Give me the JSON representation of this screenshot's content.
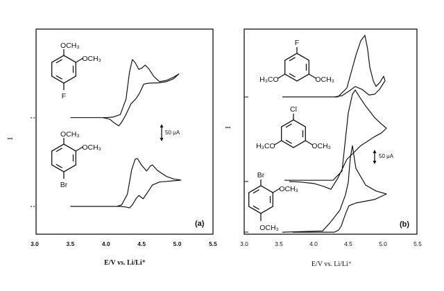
{
  "chart_data": [
    {
      "type": "line",
      "panel_label": "(a)",
      "xlabel": "E/V vs. Li/Li⁺",
      "ylabel": "I",
      "xlim": [
        3.0,
        5.5
      ],
      "xtick_labels": [
        "3.0",
        "3.5",
        "4.0",
        "4.5",
        "5.0",
        "5.5"
      ],
      "ylim_uA": [
        0,
        672
      ],
      "scale_bar": "50 μA",
      "grid": false,
      "structures": [
        {
          "top": "OCH₃",
          "upper_right": "OCH₃",
          "bottom": "F"
        },
        {
          "top": "OCH₃",
          "upper_right": "OCH₃",
          "bottom": "Br"
        }
      ],
      "series": [
        {
          "baseline_uA": 382,
          "points": [
            [
              3.5,
              0
            ],
            [
              4.0,
              0
            ],
            [
              4.1,
              2
            ],
            [
              4.2,
              10
            ],
            [
              4.28,
              60
            ],
            [
              4.33,
              150
            ],
            [
              4.37,
              190
            ],
            [
              4.41,
              180
            ],
            [
              4.46,
              158
            ],
            [
              4.5,
              162
            ],
            [
              4.55,
              172
            ],
            [
              4.6,
              160
            ],
            [
              4.67,
              135
            ],
            [
              4.75,
              118
            ],
            [
              4.85,
              122
            ],
            [
              4.95,
              133
            ],
            [
              5.02,
              143
            ],
            [
              4.95,
              128
            ],
            [
              4.85,
              118
            ],
            [
              4.75,
              114
            ],
            [
              4.6,
              113
            ],
            [
              4.53,
              110
            ],
            [
              4.47,
              80
            ],
            [
              4.42,
              62
            ],
            [
              4.35,
              45
            ],
            [
              4.28,
              10
            ],
            [
              4.22,
              -15
            ],
            [
              4.18,
              -27
            ],
            [
              4.12,
              -18
            ],
            [
              4.05,
              -5
            ],
            [
              3.95,
              0
            ],
            [
              3.5,
              0
            ]
          ]
        },
        {
          "baseline_uA": 91,
          "points": [
            [
              3.5,
              0
            ],
            [
              4.15,
              0
            ],
            [
              4.22,
              5
            ],
            [
              4.3,
              40
            ],
            [
              4.36,
              120
            ],
            [
              4.41,
              155
            ],
            [
              4.44,
              157
            ],
            [
              4.5,
              135
            ],
            [
              4.57,
              116
            ],
            [
              4.62,
              132
            ],
            [
              4.65,
              136
            ],
            [
              4.72,
              118
            ],
            [
              4.85,
              98
            ],
            [
              4.95,
              90
            ],
            [
              5.05,
              86
            ],
            [
              4.95,
              84
            ],
            [
              4.85,
              82
            ],
            [
              4.75,
              80
            ],
            [
              4.65,
              70
            ],
            [
              4.58,
              45
            ],
            [
              4.52,
              25
            ],
            [
              4.46,
              36
            ],
            [
              4.42,
              25
            ],
            [
              4.37,
              5
            ],
            [
              4.33,
              -5
            ],
            [
              4.28,
              -2
            ],
            [
              4.2,
              0
            ],
            [
              3.5,
              0
            ]
          ]
        }
      ]
    },
    {
      "type": "line",
      "panel_label": "(b)",
      "xlabel": "E/V vs. Li/Li⁺",
      "ylabel": "I",
      "xlim": [
        3.0,
        5.5
      ],
      "xtick_labels": [
        "3.0",
        "3.5",
        "4.0",
        "4.5",
        "5.0",
        "5.5"
      ],
      "ylim_uA": [
        0,
        822
      ],
      "scale_bar": "50 μA",
      "grid": false,
      "structures": [
        {
          "top": "F",
          "lower_left": "H₃CO",
          "lower_right": "OCH₃"
        },
        {
          "top": "Cl",
          "lower_left": "H₃CO",
          "lower_right": "OCH₃"
        },
        {
          "top": "Br",
          "upper_right": "OCH₃",
          "bottom": "OCH₃"
        }
      ],
      "series": [
        {
          "baseline_uA": 550,
          "points": [
            [
              3.55,
              0
            ],
            [
              4.35,
              0
            ],
            [
              4.48,
              36
            ],
            [
              4.61,
              167
            ],
            [
              4.68,
              225
            ],
            [
              4.74,
              247
            ],
            [
              4.78,
              190
            ],
            [
              4.81,
              120
            ],
            [
              4.86,
              65
            ],
            [
              4.9,
              42
            ],
            [
              4.96,
              60
            ],
            [
              5.01,
              83
            ],
            [
              5.03,
              65
            ],
            [
              4.95,
              30
            ],
            [
              4.88,
              11
            ],
            [
              4.8,
              8
            ],
            [
              4.7,
              30
            ],
            [
              4.6,
              42
            ],
            [
              4.52,
              25
            ],
            [
              4.41,
              5
            ],
            [
              4.3,
              0
            ],
            [
              4.2,
              0
            ]
          ]
        },
        {
          "baseline_uA": 211,
          "points": [
            [
              3.58,
              5
            ],
            [
              4.28,
              5
            ],
            [
              4.41,
              42
            ],
            [
              4.5,
              275
            ],
            [
              4.56,
              350
            ],
            [
              4.6,
              367
            ],
            [
              4.66,
              340
            ],
            [
              4.75,
              303
            ],
            [
              4.88,
              256
            ],
            [
              4.98,
              230
            ],
            [
              5.05,
              214
            ],
            [
              4.98,
              195
            ],
            [
              4.88,
              180
            ],
            [
              4.68,
              144
            ],
            [
              4.48,
              89
            ],
            [
              4.35,
              14
            ],
            [
              4.25,
              -31
            ],
            [
              4.15,
              -20
            ],
            [
              4.01,
              -8
            ],
            [
              3.8,
              -2
            ],
            [
              3.65,
              0
            ]
          ]
        },
        {
          "baseline_uA": 8,
          "points": [
            [
              3.55,
              0
            ],
            [
              4.13,
              5
            ],
            [
              4.25,
              42
            ],
            [
              4.38,
              89
            ],
            [
              4.46,
              150
            ],
            [
              4.5,
              200
            ],
            [
              4.53,
              300
            ],
            [
              4.56,
              347
            ],
            [
              4.58,
              310
            ],
            [
              4.61,
              256
            ],
            [
              4.75,
              189
            ],
            [
              4.9,
              165
            ],
            [
              5.05,
              153
            ],
            [
              4.88,
              131
            ],
            [
              4.61,
              117
            ],
            [
              4.51,
              106
            ],
            [
              4.47,
              80
            ],
            [
              4.43,
              50
            ],
            [
              4.4,
              25
            ],
            [
              4.36,
              8
            ],
            [
              4.3,
              0
            ],
            [
              3.9,
              0
            ],
            [
              3.7,
              0
            ]
          ]
        }
      ]
    }
  ]
}
